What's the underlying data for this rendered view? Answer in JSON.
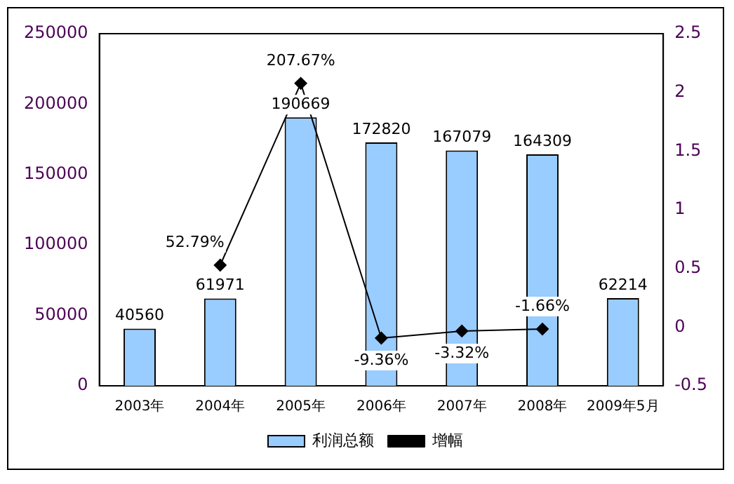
{
  "chart_data": {
    "type": "bar",
    "categories": [
      "2003年",
      "2004年",
      "2005年",
      "2006年",
      "2007年",
      "2008年",
      "2009年5月"
    ],
    "series": [
      {
        "name": "利润总额",
        "color": "#99ccff",
        "values": [
          40560,
          61971,
          190669,
          172820,
          167079,
          164309,
          62214
        ],
        "value_labels": [
          "40560",
          "61971",
          "190669",
          "172820",
          "167079",
          "164309",
          "62214"
        ]
      },
      {
        "name": "增幅",
        "type": "line",
        "axis": "y2",
        "color": "#000000",
        "marker": "diamond",
        "values": [
          null,
          0.5279,
          2.0767,
          -0.0936,
          -0.0332,
          -0.0166,
          null
        ],
        "value_labels": [
          null,
          "52.79%",
          "207.67%",
          "-9.36%",
          "-3.32%",
          "-1.66%",
          null
        ]
      }
    ],
    "ylim": [
      0,
      250000
    ],
    "yticks": [
      0,
      50000,
      100000,
      150000,
      200000,
      250000
    ],
    "y2lim": [
      -0.5,
      2.5
    ],
    "y2ticks": [
      -0.5,
      0,
      0.5,
      1,
      1.5,
      2,
      2.5
    ],
    "grid": false,
    "legend": "bottom"
  }
}
